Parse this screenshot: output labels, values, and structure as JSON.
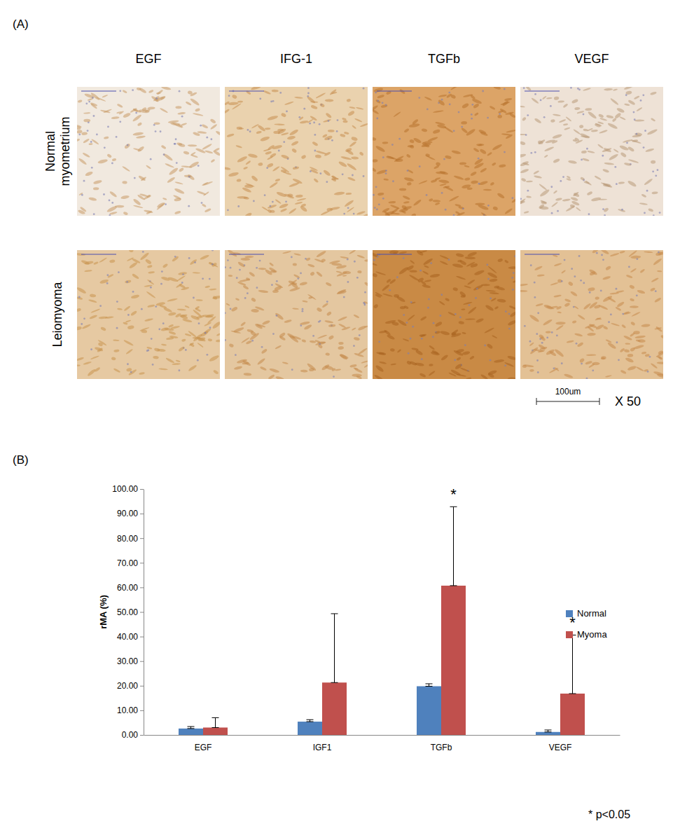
{
  "panel_a": {
    "label": "(A)",
    "columns": [
      "EGF",
      "IFG-1",
      "TGFb",
      "VEGF"
    ],
    "rows": [
      "Normal myometrium",
      "Leiomyoma"
    ],
    "scale_bar": "100um",
    "magnification": "X 50"
  },
  "chart_data": {
    "type": "bar",
    "panel_label": "(B)",
    "y_label": "rMA (%)",
    "categories": [
      "EGF",
      "IGF1",
      "TGFb",
      "VEGF"
    ],
    "series": [
      {
        "name": "Normal",
        "color": "#4f81bd",
        "values": [
          2.6,
          5.4,
          19.8,
          1.2
        ],
        "errors": [
          0.8,
          0.8,
          1.0,
          0.8
        ]
      },
      {
        "name": "Myoma",
        "color": "#c0504d",
        "values": [
          3.0,
          21.3,
          60.7,
          16.8
        ],
        "errors": [
          4.0,
          28.0,
          32.1,
          23.8
        ]
      }
    ],
    "ylim": [
      0,
      100
    ],
    "yticks": [
      {
        "value": 0,
        "label": "0.00"
      },
      {
        "value": 10,
        "label": "10.00"
      },
      {
        "value": 20,
        "label": "20.00"
      },
      {
        "value": 30,
        "label": "30.00"
      },
      {
        "value": 40,
        "label": "40.00"
      },
      {
        "value": 50,
        "label": "50.00"
      },
      {
        "value": 60,
        "label": "60.00"
      },
      {
        "value": 70,
        "label": "70.00"
      },
      {
        "value": 80,
        "label": "80.00"
      },
      {
        "value": 90,
        "label": "90.00"
      },
      {
        "value": 100,
        "label": "100.00"
      }
    ],
    "grid": false,
    "legend": "right",
    "annotations": [
      {
        "text": "*",
        "x": "TGFb",
        "series": "Myoma"
      },
      {
        "text": "*",
        "x": "VEGF",
        "series": "Myoma"
      }
    ],
    "note": "* p<0.05"
  }
}
